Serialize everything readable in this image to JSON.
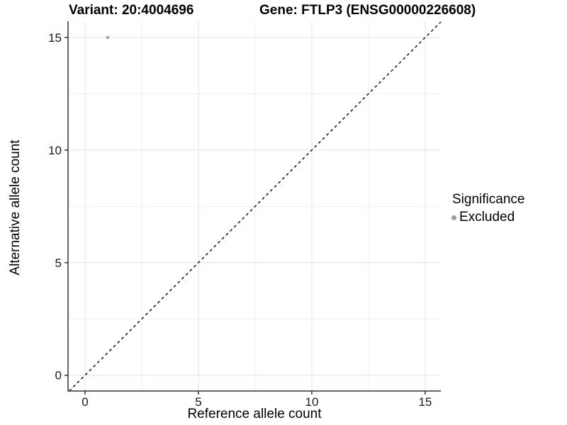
{
  "title": {
    "variant": "Variant: 20:4004696",
    "gene": "Gene: FTLP3 (ENSG00000226608)"
  },
  "chart_data": {
    "type": "scatter",
    "title": "Variant: 20:4004696    Gene: FTLP3 (ENSG00000226608)",
    "xlabel": "Reference allele count",
    "ylabel": "Alternative allele count",
    "xlim": [
      -0.75,
      15.69
    ],
    "ylim": [
      -0.7,
      15.72
    ],
    "x_major_ticks": [
      0,
      5,
      10,
      15
    ],
    "y_major_ticks": [
      0,
      5,
      10,
      15
    ],
    "x_minor_ticks": [
      2.5,
      7.5,
      12.5
    ],
    "y_minor_ticks": [
      2.5,
      7.5,
      12.5
    ],
    "grid": true,
    "identity_line": {
      "slope": 1,
      "intercept": 0,
      "style": "dashed",
      "color": "#000000"
    },
    "series": [
      {
        "name": "Excluded",
        "color": "#a3a3a3",
        "point_radius": 2.3,
        "points": [
          {
            "x": 1,
            "y": 15
          }
        ]
      }
    ],
    "legend": {
      "title": "Significance",
      "position": "right",
      "items": [
        {
          "label": "Excluded",
          "color": "#9e9e9e"
        }
      ]
    }
  },
  "colors": {
    "background": "#ffffff",
    "major_gridline": "#e4e4e4",
    "minor_gridline": "#efefef",
    "axis_line": "#333333",
    "tick_label": "#1a1a1a"
  }
}
